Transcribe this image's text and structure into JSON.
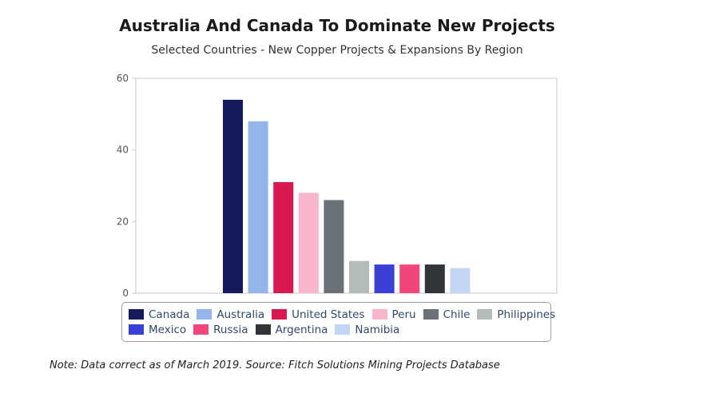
{
  "chart_data": {
    "type": "bar",
    "title": "Australia And Canada To Dominate New Projects",
    "subtitle": "Selected Countries - New Copper Projects & Expansions By Region",
    "xlabel": "",
    "ylabel": "",
    "ylim": [
      0,
      60
    ],
    "yticks": [
      0,
      20,
      40,
      60
    ],
    "grid": false,
    "legend_position": "bottom",
    "categories": [
      "Canada",
      "Australia",
      "United States",
      "Peru",
      "Chile",
      "Philippines",
      "Mexico",
      "Russia",
      "Argentina",
      "Namibia"
    ],
    "values": [
      54,
      48,
      31,
      28,
      26,
      9,
      8,
      8,
      8,
      7
    ],
    "colors": [
      "#151a5e",
      "#93b5ea",
      "#d8184f",
      "#f9b5c9",
      "#6b7178",
      "#b4bcb7",
      "#3a3fd6",
      "#f2457a",
      "#30353a",
      "#c3d6f4"
    ],
    "legend_rows": [
      [
        "Canada",
        "Australia",
        "United States",
        "Peru",
        "Chile",
        "Philippines"
      ],
      [
        "Mexico",
        "Russia",
        "Argentina",
        "Namibia"
      ]
    ]
  },
  "note": "Note: Data correct as of March 2019. Source: Fitch Solutions Mining Projects Database"
}
